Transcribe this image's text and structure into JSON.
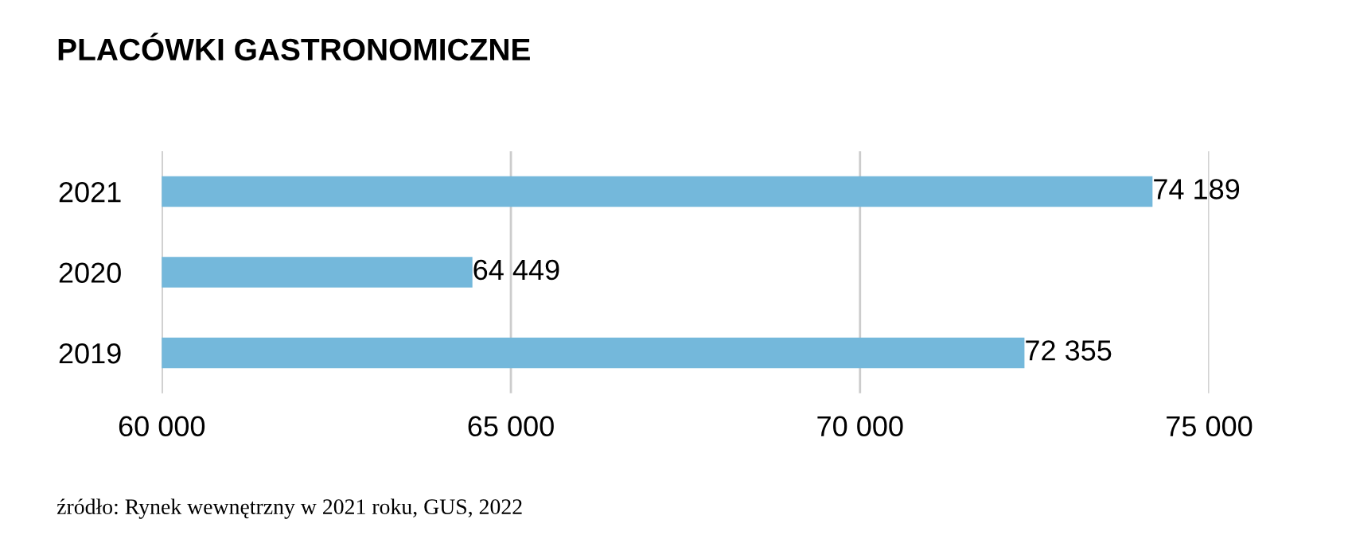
{
  "chart_data": {
    "type": "bar",
    "orientation": "horizontal",
    "title": "PLACÓWKI GASTRONOMICZNE",
    "categories": [
      "2021",
      "2020",
      "2019"
    ],
    "values": [
      74189,
      64449,
      72355
    ],
    "value_labels": [
      "74 189",
      "64 449",
      "72 355"
    ],
    "color": "#74b8db",
    "xlim": [
      60000,
      75000
    ],
    "xticks": [
      {
        "value": 60000,
        "label": "60 000"
      },
      {
        "value": 65000,
        "label": "65 000"
      },
      {
        "value": 70000,
        "label": "70 000"
      },
      {
        "value": 75000,
        "label": "75 000"
      }
    ],
    "grid": "x",
    "annotations": [
      "źródło: Rynek wewnętrzny w 2021 roku, GUS, 2022"
    ]
  }
}
